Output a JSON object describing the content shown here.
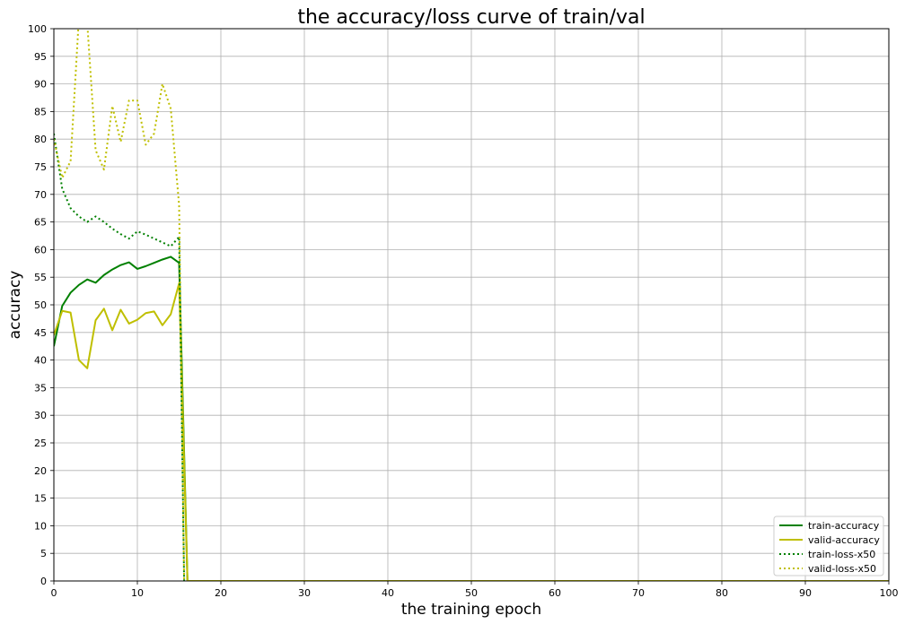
{
  "chart_data": {
    "type": "line",
    "title": "the accuracy/loss curve of train/val",
    "xlabel": "the training epoch",
    "ylabel": "accuracy",
    "xlim": [
      0,
      100
    ],
    "ylim": [
      0,
      100
    ],
    "xticks": [
      0,
      10,
      20,
      30,
      40,
      50,
      60,
      70,
      80,
      90,
      100
    ],
    "yticks": [
      0,
      5,
      10,
      15,
      20,
      25,
      30,
      35,
      40,
      45,
      50,
      55,
      60,
      65,
      70,
      75,
      80,
      85,
      90,
      95,
      100
    ],
    "grid": true,
    "legend_position": "lower-right",
    "series": [
      {
        "name": "train-accuracy",
        "color": "#008000",
        "style": "solid",
        "x": [
          0,
          1,
          2,
          3,
          4,
          5,
          6,
          7,
          8,
          9,
          10,
          11,
          12,
          13,
          14,
          15,
          16,
          100
        ],
        "y": [
          42.5,
          49.8,
          52.2,
          53.6,
          54.6,
          54.0,
          55.4,
          56.4,
          57.2,
          57.7,
          56.5,
          57.0,
          57.6,
          58.2,
          58.7,
          57.6,
          0,
          0
        ]
      },
      {
        "name": "valid-accuracy",
        "color": "#bfbf00",
        "style": "solid",
        "x": [
          0,
          1,
          2,
          3,
          4,
          5,
          6,
          7,
          8,
          9,
          10,
          11,
          12,
          13,
          14,
          15,
          16,
          100
        ],
        "y": [
          44.5,
          48.9,
          48.6,
          40.0,
          38.5,
          47.2,
          49.3,
          45.4,
          49.1,
          46.6,
          47.3,
          48.5,
          48.8,
          46.3,
          48.3,
          53.9,
          0,
          0
        ]
      },
      {
        "name": "train-loss-x50",
        "color": "#008000",
        "style": "dotted",
        "x": [
          0,
          1,
          2,
          3,
          4,
          5,
          6,
          7,
          8,
          9,
          10,
          11,
          12,
          13,
          14,
          15,
          15.6
        ],
        "y": [
          81,
          71,
          67.5,
          66,
          65,
          66,
          65,
          63.8,
          62.8,
          62,
          63.3,
          62.7,
          62,
          61.3,
          60.6,
          62.3,
          0
        ]
      },
      {
        "name": "valid-loss-x50",
        "color": "#bfbf00",
        "style": "dotted",
        "x": [
          0,
          1,
          2,
          3,
          4,
          5,
          6,
          7,
          8,
          9,
          10,
          11,
          12,
          13,
          14,
          15,
          15.6
        ],
        "y": [
          80,
          73,
          76,
          102,
          101,
          78,
          74.5,
          86,
          79.5,
          87,
          87,
          79,
          81,
          90,
          85.5,
          68,
          0
        ]
      }
    ]
  }
}
